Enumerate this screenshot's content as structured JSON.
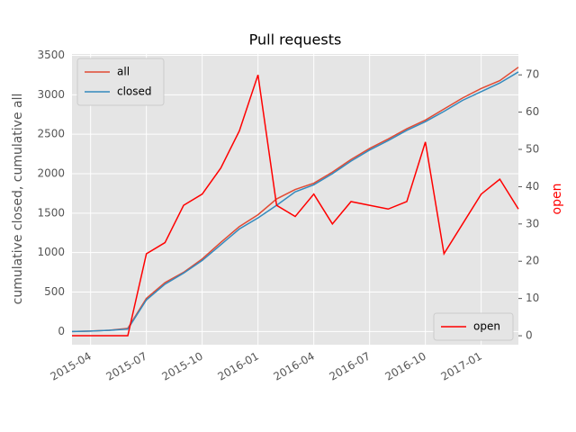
{
  "chart_data": {
    "type": "line",
    "title": "Pull requests",
    "ylabel": "cumulative closed, cumulative all",
    "y2label": "open",
    "x": [
      "2015-03",
      "2015-04",
      "2015-05",
      "2015-06",
      "2015-07",
      "2015-08",
      "2015-09",
      "2015-10",
      "2015-11",
      "2015-12",
      "2016-01",
      "2016-02",
      "2016-03",
      "2016-04",
      "2016-05",
      "2016-06",
      "2016-07",
      "2016-08",
      "2016-09",
      "2016-10",
      "2016-11",
      "2016-12",
      "2017-01",
      "2017-02",
      "2017-03"
    ],
    "xlim": [
      "2015-03",
      "2017-03"
    ],
    "xticks": [
      "2015-04",
      "2015-07",
      "2015-10",
      "2016-01",
      "2016-04",
      "2016-07",
      "2016-10",
      "2017-01"
    ],
    "ylim": [
      -167.5,
      3517.5
    ],
    "yticks": [
      0,
      500,
      1000,
      1500,
      2000,
      2500,
      3000,
      3500
    ],
    "y2lim": [
      -2.4,
      75.6
    ],
    "y2ticks": [
      0,
      10,
      20,
      30,
      40,
      50,
      60,
      70
    ],
    "grid": true,
    "legend": "upper left",
    "y2legend": "lower right",
    "y2color": "#ff0000",
    "series": [
      {
        "name": "all",
        "color": "#E24A33",
        "values": [
          0,
          5,
          15,
          40,
          420,
          620,
          750,
          920,
          1130,
          1330,
          1480,
          1680,
          1800,
          1880,
          2020,
          2180,
          2320,
          2440,
          2570,
          2680,
          2820,
          2960,
          3080,
          3180,
          3350
        ]
      },
      {
        "name": "closed",
        "color": "#348ABD",
        "values": [
          0,
          5,
          15,
          30,
          400,
          600,
          740,
          900,
          1100,
          1300,
          1440,
          1600,
          1770,
          1860,
          2000,
          2160,
          2300,
          2420,
          2550,
          2660,
          2790,
          2930,
          3040,
          3150,
          3290
        ]
      },
      {
        "name": "open",
        "color": "#ff0000",
        "axis": "y2",
        "values": [
          0,
          0,
          0,
          0,
          22,
          25,
          35,
          38,
          45,
          55,
          70,
          35,
          32,
          38,
          30,
          36,
          35,
          34,
          36,
          52,
          22,
          30,
          38,
          42,
          34
        ]
      }
    ]
  }
}
